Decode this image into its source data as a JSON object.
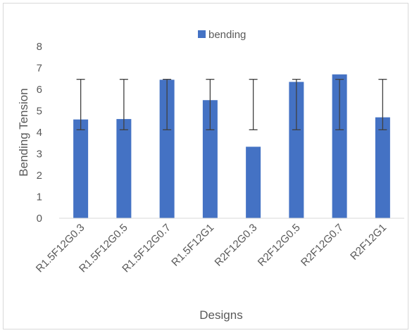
{
  "chart_data": {
    "type": "bar",
    "categories": [
      "R1.5F12G0.3",
      "R1.5F12G0.5",
      "R1.5F12G0.7",
      "R1.5F12G1",
      "R2F12G0.3",
      "R2F12G0.5",
      "R2F12G0.7",
      "R2F12G1"
    ],
    "series": [
      {
        "name": "bending",
        "values": [
          4.6,
          4.62,
          6.45,
          5.5,
          3.33,
          6.35,
          6.7,
          4.7
        ],
        "error_low": [
          4.12,
          4.12,
          4.12,
          4.12,
          4.12,
          4.12,
          4.12,
          4.12
        ],
        "error_high": [
          6.47,
          6.47,
          6.47,
          6.47,
          6.47,
          6.47,
          6.47,
          6.47
        ],
        "color": "#4472c4"
      }
    ],
    "xlabel": "Designs",
    "ylabel": "Bending Tension",
    "ylim": [
      0,
      8
    ],
    "yticks": [
      "0",
      "1",
      "2",
      "3",
      "4",
      "5",
      "6",
      "7",
      "8"
    ],
    "grid": false,
    "legend_position": "top",
    "colors": {
      "axis": "#d9d9d9",
      "text": "#595959",
      "error_bar": "#404040"
    }
  }
}
